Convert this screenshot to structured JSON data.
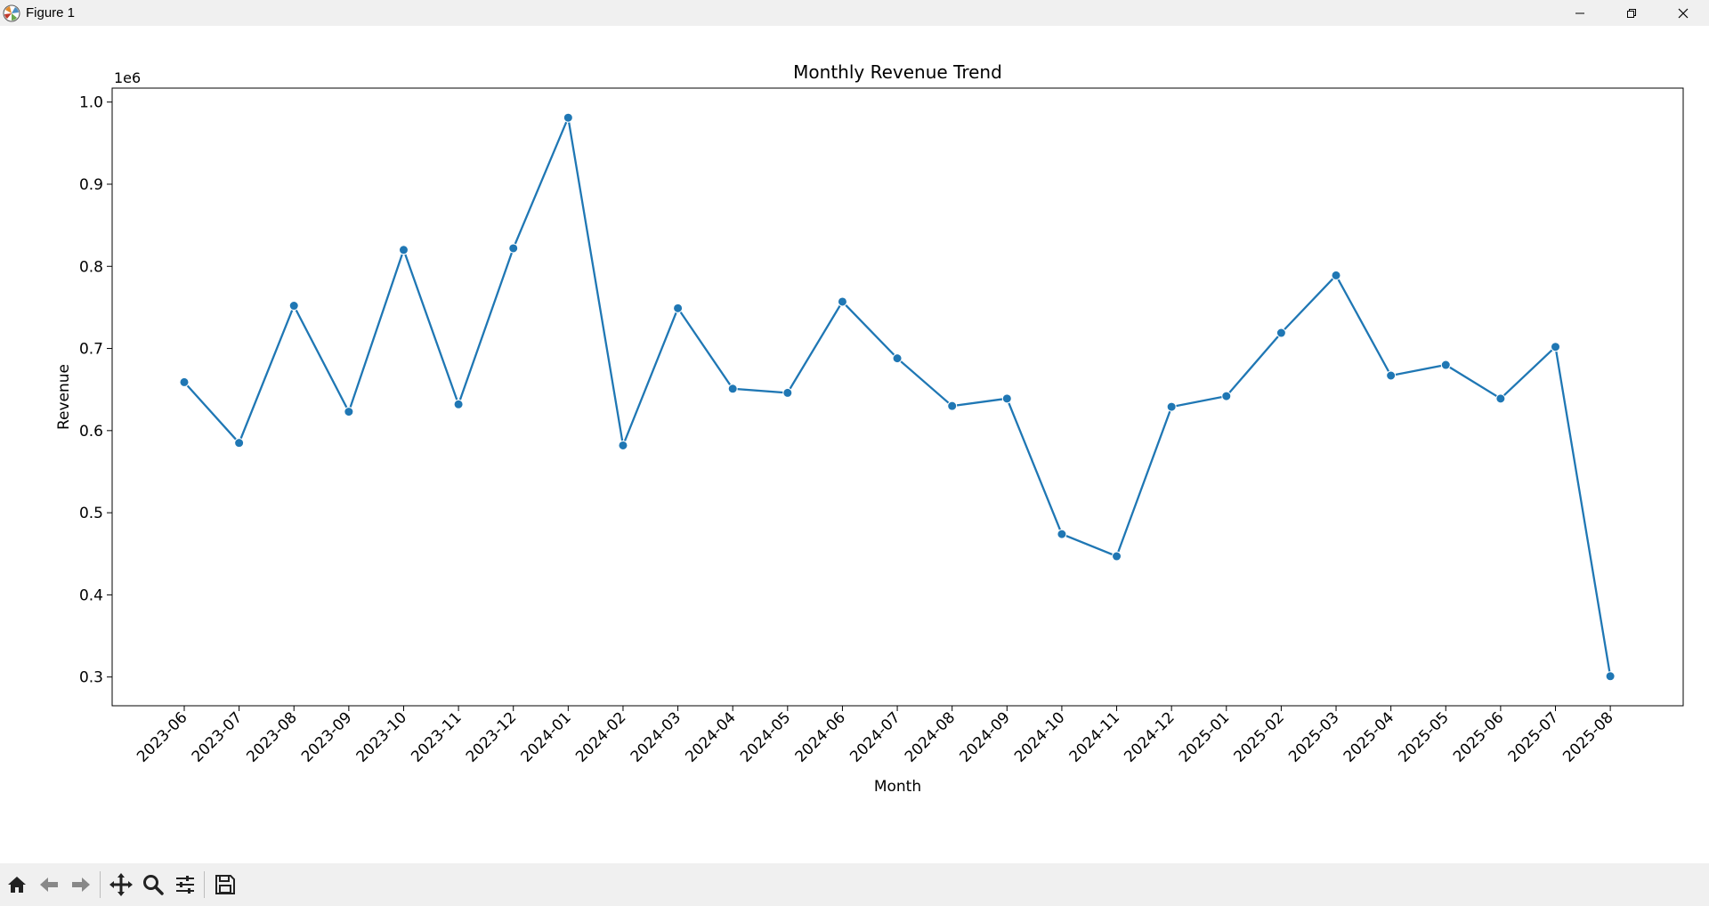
{
  "window": {
    "title": "Figure 1"
  },
  "toolbar": {
    "buttons": [
      {
        "icon": "home-icon"
      },
      {
        "icon": "back-arrow-icon"
      },
      {
        "icon": "forward-arrow-icon"
      },
      {
        "icon": "pan-icon"
      },
      {
        "icon": "zoom-icon"
      },
      {
        "icon": "configure-subplots-icon"
      },
      {
        "icon": "save-icon"
      }
    ]
  },
  "chart_data": {
    "type": "line",
    "title": "Monthly Revenue Trend",
    "xlabel": "Month",
    "ylabel": "Revenue",
    "y_offset_label": "1e6",
    "categories": [
      "2023-06",
      "2023-07",
      "2023-08",
      "2023-09",
      "2023-10",
      "2023-11",
      "2023-12",
      "2024-01",
      "2024-02",
      "2024-03",
      "2024-04",
      "2024-05",
      "2024-06",
      "2024-07",
      "2024-08",
      "2024-09",
      "2024-10",
      "2024-11",
      "2024-12",
      "2025-01",
      "2025-02",
      "2025-03",
      "2025-04",
      "2025-05",
      "2025-06",
      "2025-07",
      "2025-08"
    ],
    "series": [
      {
        "values": [
          659000,
          585000,
          752000,
          623000,
          820000,
          632000,
          822000,
          981000,
          582000,
          749000,
          651000,
          646000,
          757000,
          688000,
          630000,
          639000,
          474000,
          447000,
          629000,
          642000,
          719000,
          789000,
          667000,
          680000,
          639000,
          702000,
          301000
        ],
        "color": "#1f77b4",
        "marker": "circle"
      }
    ],
    "ylim": [
      0.265,
      1.017
    ],
    "yticks": [
      {
        "value": 0.3,
        "label": "0.3"
      },
      {
        "value": 0.4,
        "label": "0.4"
      },
      {
        "value": 0.5,
        "label": "0.5"
      },
      {
        "value": 0.6,
        "label": "0.6"
      },
      {
        "value": 0.7,
        "label": "0.7"
      },
      {
        "value": 0.8,
        "label": "0.8"
      },
      {
        "value": 0.9,
        "label": "0.9"
      },
      {
        "value": 1.0,
        "label": "1.0"
      }
    ],
    "grid": false,
    "legend": "none"
  }
}
